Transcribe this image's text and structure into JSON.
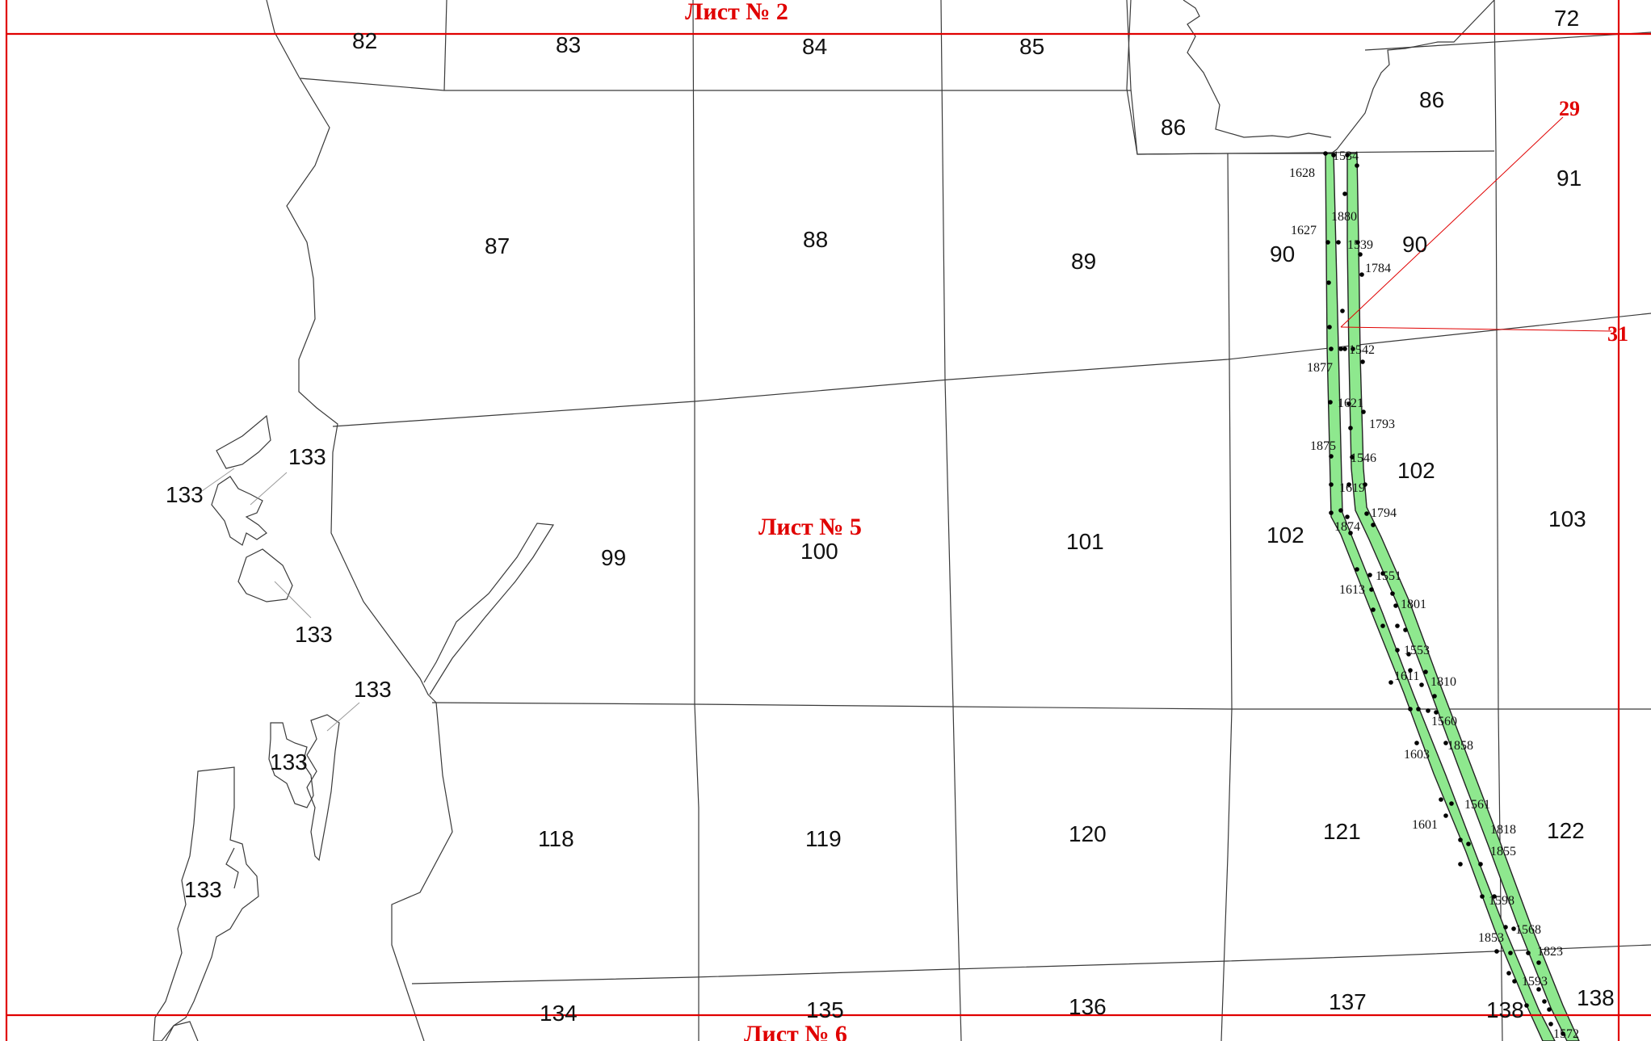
{
  "sheets": {
    "top": "Лист № 2",
    "center": "Лист № 5",
    "bottom": "Лист № 6"
  },
  "markers": {
    "m29": "29",
    "m31": "31"
  },
  "parcels": {
    "p72": "72",
    "p82": "82",
    "p83": "83",
    "p84": "84",
    "p85": "85",
    "p86a": "86",
    "p86b": "86",
    "p87": "87",
    "p88": "88",
    "p89": "89",
    "p90a": "90",
    "p90b": "90",
    "p91": "91",
    "p99": "99",
    "p100": "100",
    "p101": "101",
    "p102a": "102",
    "p102b": "102",
    "p103": "103",
    "p118": "118",
    "p119": "119",
    "p120": "120",
    "p121": "121",
    "p122": "122",
    "p133a": "133",
    "p133b": "133",
    "p133c": "133",
    "p133d": "133",
    "p133e": "133",
    "p133f": "133",
    "p134": "134",
    "p135": "135",
    "p136": "136",
    "p137": "137",
    "p138a": "138",
    "p138b": "138"
  },
  "points": {
    "n1534": "1534",
    "n1628": "1628",
    "n1880": "1880",
    "n1627": "1627",
    "n1539": "1539",
    "n1784": "1784",
    "n1542": "1542",
    "n1877": "1877",
    "n1621": "1621",
    "n1793": "1793",
    "n1875": "1875",
    "n1546": "1546",
    "n1619": "1619",
    "n1794": "1794",
    "n1874": "1874",
    "n1551": "1551",
    "n1613": "1613",
    "n1801": "1801",
    "n1553": "1553",
    "n1611": "1611",
    "n1810": "1810",
    "n1560": "1560",
    "n1603": "1603",
    "n1858": "1858",
    "n1561": "1561",
    "n1601": "1601",
    "n1818": "1818",
    "n1855": "1855",
    "n1598": "1598",
    "n1568": "1568",
    "n1853": "1853",
    "n1823": "1823",
    "n1593": "1593",
    "n1572": "1572"
  },
  "colors": {
    "frame": "#e00000",
    "corridor": "#8ee88e",
    "boundary": "#3a3a3a"
  }
}
